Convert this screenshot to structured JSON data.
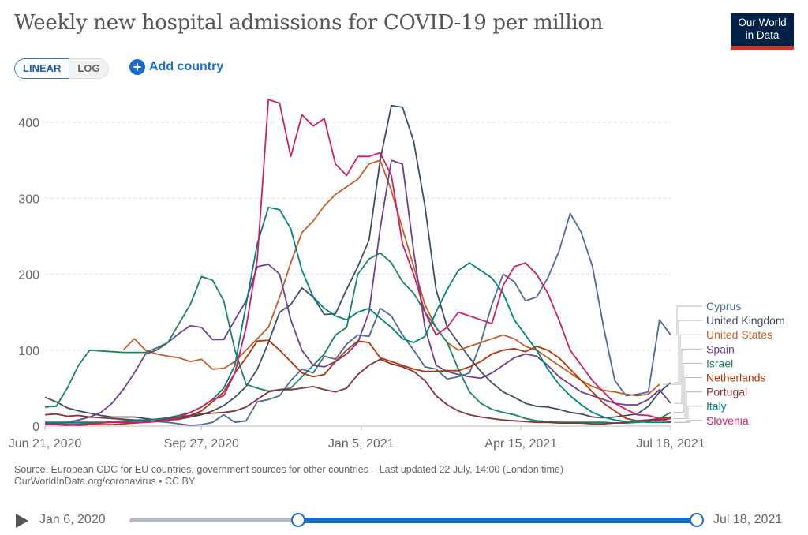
{
  "header": {
    "title": "Weekly new hospital admissions for COVID-19 per million",
    "logo_line1": "Our World",
    "logo_line2": "in Data"
  },
  "controls": {
    "linear_label": "LINEAR",
    "log_label": "LOG",
    "add_country_label": "Add country"
  },
  "footer": {
    "source": "Source: European CDC for EU countries, government sources for other countries – Last updated 22 July, 14:00 (London time)",
    "license": "OurWorldInData.org/coronavirus • CC BY"
  },
  "timeline": {
    "start_label": "Jan 6, 2020",
    "end_label": "Jul 18, 2021",
    "selected_start": "Jun 21, 2020",
    "selected_end": "Jul 18, 2021"
  },
  "chart_data": {
    "type": "line",
    "title": "Weekly new hospital admissions for COVID-19 per million",
    "xlabel": "",
    "ylabel": "",
    "x_start": "Jun 21, 2020",
    "x_end": "Jul 18, 2021",
    "x_interval": "weekly",
    "x_tick_labels": [
      "Jun 21, 2020",
      "Sep 27, 2020",
      "Jan 5, 2021",
      "Apr 15, 2021",
      "Jul 18, 2021"
    ],
    "x_tick_weeks": [
      0,
      14,
      28.3,
      42.6,
      56
    ],
    "y_ticks": [
      0,
      100,
      200,
      300,
      400
    ],
    "ylim": [
      0,
      440
    ],
    "grid": "horizontal-dashed",
    "legend": "right-labels",
    "series": [
      {
        "name": "Cyprus",
        "color": "#4c6a9c",
        "values": [
          3,
          3,
          3,
          3,
          4,
          4,
          6,
          7,
          7,
          7,
          6,
          5,
          3,
          1,
          2,
          5,
          15,
          5,
          7,
          32,
          35,
          40,
          60,
          75,
          70,
          92,
          88,
          108,
          120,
          118,
          155,
          145,
          120,
          100,
          78,
          75,
          62,
          65,
          70,
          110,
          160,
          200,
          190,
          165,
          170,
          195,
          230,
          280,
          255,
          210,
          130,
          60,
          40,
          42,
          45,
          140,
          120
        ]
      },
      {
        "name": "United Kingdom",
        "color": "#3c4e66",
        "values": [
          38,
          32,
          24,
          20,
          17,
          14,
          12,
          12,
          12,
          10,
          8,
          8,
          9,
          12,
          15,
          20,
          27,
          38,
          52,
          75,
          110,
          150,
          160,
          182,
          170,
          147,
          148,
          180,
          210,
          245,
          350,
          422,
          420,
          375,
          290,
          180,
          130,
          110,
          90,
          72,
          57,
          45,
          38,
          30,
          26,
          25,
          22,
          18,
          16,
          12,
          11,
          12,
          14,
          16,
          26,
          45,
          57
        ]
      },
      {
        "name": "United States",
        "color": "#c15f24",
        "values": [
          null,
          null,
          null,
          null,
          null,
          null,
          null,
          100,
          115,
          100,
          95,
          92,
          90,
          85,
          88,
          75,
          76,
          85,
          100,
          115,
          130,
          170,
          215,
          255,
          270,
          290,
          305,
          315,
          325,
          345,
          350,
          310,
          260,
          210,
          160,
          130,
          110,
          100,
          105,
          110,
          115,
          120,
          115,
          105,
          100,
          90,
          80,
          70,
          60,
          52,
          47,
          45,
          42,
          40,
          42,
          55,
          null
        ]
      },
      {
        "name": "Spain",
        "color": "#6d3e91",
        "values": [
          3,
          4,
          5,
          8,
          12,
          18,
          30,
          48,
          70,
          95,
          100,
          110,
          122,
          132,
          130,
          114,
          114,
          140,
          165,
          210,
          213,
          200,
          140,
          100,
          80,
          78,
          85,
          95,
          110,
          150,
          260,
          350,
          345,
          230,
          130,
          80,
          72,
          68,
          65,
          63,
          70,
          80,
          90,
          95,
          92,
          80,
          65,
          55,
          45,
          40,
          35,
          30,
          28,
          28,
          35,
          48,
          30
        ]
      },
      {
        "name": "Israel",
        "color": "#18865a",
        "values": [
          25,
          26,
          50,
          80,
          100,
          99,
          98,
          97,
          97,
          97,
          103,
          110,
          135,
          160,
          197,
          192,
          165,
          100,
          55,
          50,
          46,
          48,
          50,
          65,
          80,
          95,
          120,
          130,
          200,
          220,
          228,
          215,
          190,
          175,
          150,
          130,
          110,
          75,
          45,
          30,
          22,
          18,
          15,
          10,
          7,
          6,
          5,
          5,
          5,
          5,
          5,
          4,
          4,
          5,
          6,
          10,
          18
        ]
      },
      {
        "name": "Netherlands",
        "color": "#b13507",
        "values": [
          2,
          2,
          2,
          1,
          2,
          2,
          2,
          3,
          4,
          5,
          6,
          8,
          10,
          14,
          20,
          32,
          45,
          70,
          90,
          112,
          113,
          100,
          85,
          70,
          65,
          68,
          85,
          100,
          112,
          110,
          90,
          85,
          80,
          75,
          72,
          72,
          73,
          73,
          78,
          85,
          95,
          100,
          102,
          98,
          105,
          100,
          90,
          75,
          60,
          45,
          30,
          20,
          10,
          7,
          8,
          10,
          12
        ]
      },
      {
        "name": "Portugal",
        "color": "#883039",
        "values": [
          15,
          16,
          13,
          14,
          12,
          11,
          10,
          9,
          8,
          8,
          9,
          10,
          12,
          14,
          16,
          17,
          18,
          20,
          25,
          35,
          45,
          48,
          48,
          50,
          52,
          48,
          45,
          50,
          68,
          80,
          88,
          82,
          78,
          72,
          60,
          40,
          28,
          20,
          15,
          12,
          10,
          8,
          7,
          6,
          5,
          5,
          4,
          4,
          4,
          3,
          3,
          4,
          5,
          7,
          8,
          8,
          10
        ]
      },
      {
        "name": "Italy",
        "color": "#00847e",
        "values": [
          5,
          5,
          5,
          5,
          5,
          5,
          5,
          6,
          7,
          8,
          9,
          11,
          14,
          18,
          25,
          35,
          50,
          80,
          160,
          240,
          288,
          285,
          260,
          205,
          170,
          155,
          145,
          140,
          150,
          155,
          142,
          130,
          115,
          110,
          118,
          150,
          180,
          205,
          215,
          205,
          195,
          175,
          140,
          120,
          100,
          75,
          55,
          40,
          28,
          18,
          12,
          8,
          6,
          6,
          5,
          5,
          5
        ]
      },
      {
        "name": "Slovenia",
        "color": "#d01c6b",
        "values": [
          2,
          2,
          1,
          2,
          3,
          4,
          5,
          5,
          5,
          5,
          6,
          8,
          12,
          18,
          25,
          35,
          40,
          70,
          130,
          220,
          430,
          425,
          355,
          410,
          395,
          405,
          345,
          330,
          355,
          355,
          360,
          330,
          240,
          200,
          150,
          120,
          130,
          150,
          145,
          140,
          135,
          185,
          210,
          215,
          200,
          175,
          140,
          100,
          80,
          60,
          45,
          30,
          22,
          15,
          14,
          10,
          5
        ]
      }
    ]
  }
}
